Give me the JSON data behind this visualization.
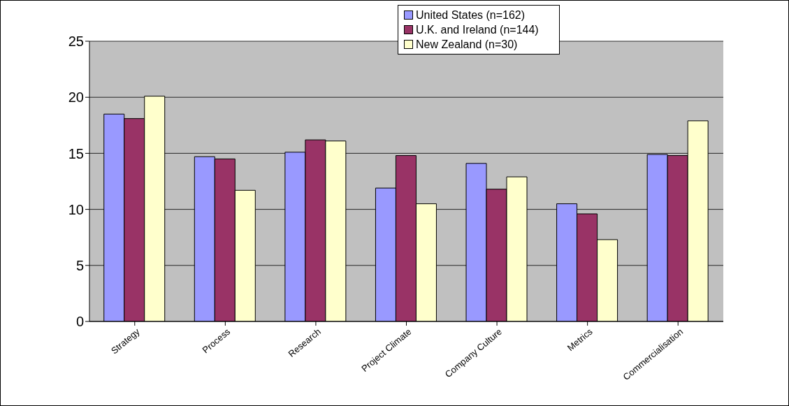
{
  "chart_data": {
    "type": "bar",
    "categories": [
      "Strategy",
      "Process",
      "Research",
      "Project Climate",
      "Company Culture",
      "Metrics",
      "Commercialisation"
    ],
    "series": [
      {
        "name": "United States (n=162)",
        "color": "#9999ff",
        "values": [
          18.5,
          14.7,
          15.1,
          11.9,
          14.1,
          10.5,
          14.9
        ]
      },
      {
        "name": "U.K. and Ireland (n=144)",
        "color": "#993366",
        "values": [
          18.1,
          14.5,
          16.2,
          14.8,
          11.8,
          9.6,
          14.8
        ]
      },
      {
        "name": "New Zealand (n=30)",
        "color": "#ffffcc",
        "values": [
          20.1,
          11.7,
          16.1,
          10.5,
          12.9,
          7.3,
          17.9
        ]
      }
    ],
    "ylim": [
      0,
      25
    ],
    "yticks": [
      0,
      5,
      10,
      15,
      20,
      25
    ],
    "grid": "y",
    "legend": "top right"
  }
}
